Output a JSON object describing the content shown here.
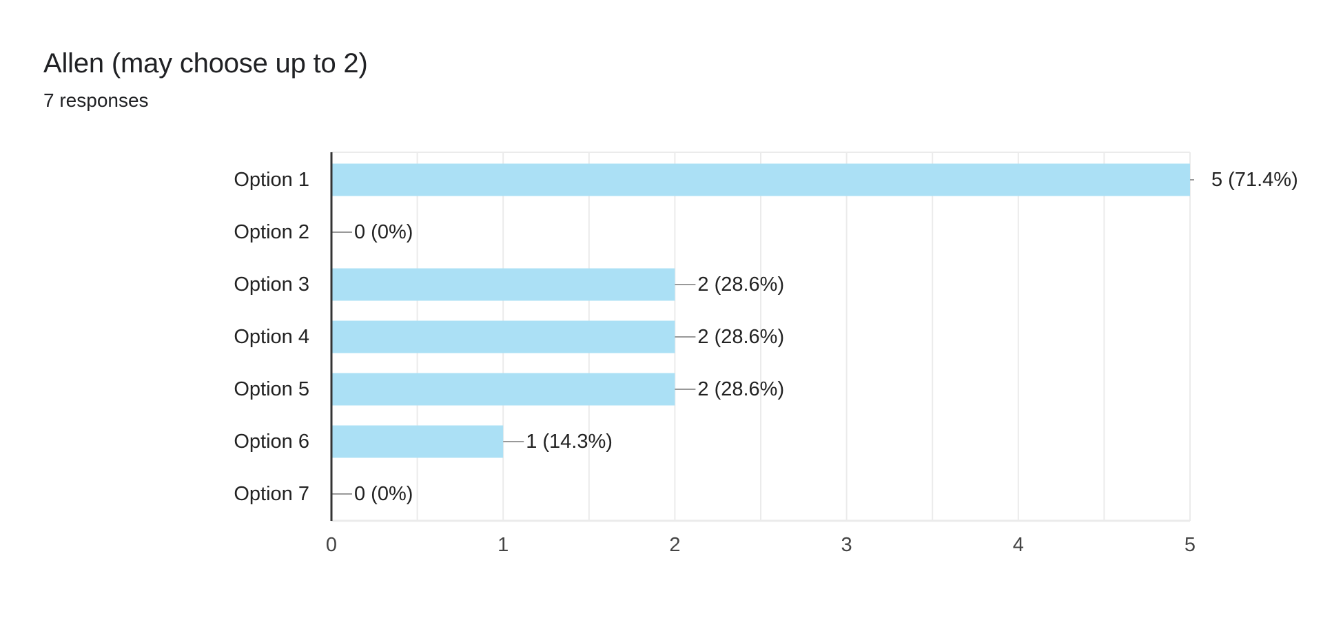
{
  "question": {
    "title": "Allen (may choose up to 2)",
    "responses_text": "7 responses"
  },
  "chart_data": {
    "type": "bar",
    "orientation": "horizontal",
    "categories": [
      "Option 1",
      "Option 2",
      "Option 3",
      "Option 4",
      "Option 5",
      "Option 6",
      "Option 7"
    ],
    "values": [
      5,
      0,
      2,
      2,
      2,
      1,
      0
    ],
    "data_labels": [
      "5 (71.4%)",
      "0 (0%)",
      "2 (28.6%)",
      "2 (28.6%)",
      "2 (28.6%)",
      "1 (14.3%)",
      "0 (0%)"
    ],
    "xlim": [
      0,
      5
    ],
    "x_ticks": [
      0,
      1,
      2,
      3,
      4,
      5
    ],
    "grid": true,
    "bar_color": "#abe0f5",
    "axis_color": "#333333",
    "grid_color": "#ebebeb",
    "leader_color": "#999999"
  }
}
